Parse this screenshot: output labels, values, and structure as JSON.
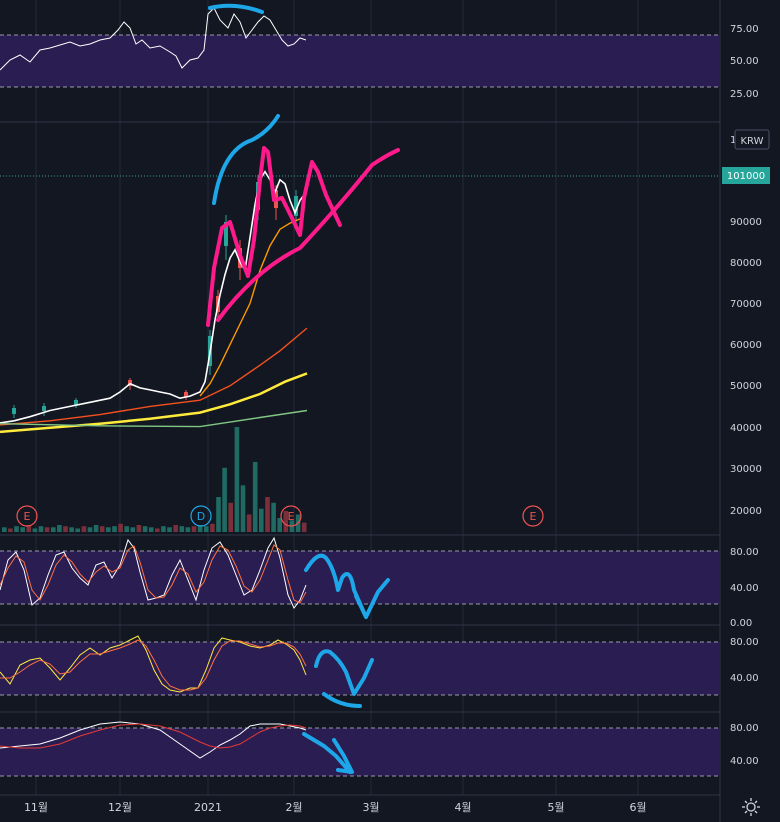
{
  "currency_badge": "KRW",
  "last_price_label": "101000",
  "colors": {
    "background": "#131722",
    "grid": "#232a3b",
    "text": "#d1d4dc",
    "band_fill": "#2a1d52",
    "band_line": "#9a9aa8",
    "candle_up": "#26a69a",
    "candle_down": "#ef5350",
    "ma_white": "#ffffff",
    "ma_orange": "#ff9800",
    "ma_red": "#f4511e",
    "ma_yellow": "#ffeb3b",
    "ma_green": "#81c784",
    "price_badge": "#26a69a",
    "drawing_blue": "#1ea7e8",
    "drawing_pink": "#ff1a8c",
    "stoch_k": "#ffffff",
    "stoch_d": "#ff7043",
    "osc2_a": "#ffeb3b",
    "osc2_b": "#ff7043",
    "osc3_a": "#ffffff",
    "osc3_b": "#e53935"
  },
  "x_axis_labels": [
    "11월",
    "12월",
    "2021",
    "2월",
    "3월",
    "4월",
    "5월",
    "6월"
  ],
  "top_indicator": {
    "tick_labels": [
      "75.00",
      "50.00",
      "25.00"
    ],
    "band_upper": 70,
    "band_lower": 30
  },
  "price_axis": {
    "tick_labels": [
      "1",
      "90000",
      "80000",
      "70000",
      "60000",
      "50000",
      "40000",
      "30000",
      "20000"
    ]
  },
  "stoch1": {
    "tick_labels": [
      "80.00",
      "40.00",
      "0.00"
    ],
    "band_upper": 80,
    "band_lower": 20
  },
  "stoch2": {
    "tick_labels": [
      "80.00",
      "40.00"
    ],
    "band_upper": 80,
    "band_lower": 20
  },
  "stoch3": {
    "tick_labels": [
      "80.00",
      "40.00"
    ],
    "band_upper": 80,
    "band_lower": 20
  },
  "event_markers": [
    {
      "label": "E",
      "kind": "earnings"
    },
    {
      "label": "D",
      "kind": "dividend"
    },
    {
      "label": "E",
      "kind": "earnings"
    },
    {
      "label": "E",
      "kind": "earnings"
    }
  ],
  "chart_data": {
    "type": "line",
    "last_price": 101000,
    "price_ylim": [
      17000,
      108000
    ],
    "price_series": [
      {
        "color": "#ffffff",
        "points": [
          [
            0,
            41000
          ],
          [
            14,
            41500
          ],
          [
            30,
            42500
          ],
          [
            50,
            44000
          ],
          [
            70,
            45000
          ],
          [
            90,
            46000
          ],
          [
            110,
            47000
          ],
          [
            120,
            48500
          ],
          [
            130,
            50500
          ],
          [
            140,
            49500
          ],
          [
            150,
            49000
          ],
          [
            160,
            48500
          ],
          [
            170,
            48000
          ],
          [
            180,
            47000
          ],
          [
            190,
            47500
          ],
          [
            200,
            48500
          ],
          [
            205,
            51000
          ],
          [
            210,
            58000
          ],
          [
            215,
            66000
          ],
          [
            220,
            72000
          ],
          [
            225,
            77000
          ],
          [
            230,
            81000
          ],
          [
            235,
            83000
          ],
          [
            240,
            80000
          ],
          [
            245,
            78000
          ],
          [
            250,
            86000
          ],
          [
            255,
            94000
          ],
          [
            260,
            100000
          ],
          [
            265,
            102000
          ],
          [
            270,
            100000
          ],
          [
            275,
            97000
          ],
          [
            280,
            100000
          ],
          [
            285,
            99000
          ],
          [
            290,
            95000
          ],
          [
            295,
            92000
          ],
          [
            300,
            95000
          ],
          [
            306,
            97000
          ]
        ]
      },
      {
        "color": "#ff9800",
        "points": [
          [
            200,
            47500
          ],
          [
            210,
            50500
          ],
          [
            220,
            55000
          ],
          [
            230,
            60000
          ],
          [
            240,
            65000
          ],
          [
            250,
            70000
          ],
          [
            260,
            78000
          ],
          [
            270,
            84000
          ],
          [
            280,
            88000
          ],
          [
            290,
            89500
          ],
          [
            300,
            90500
          ]
        ]
      },
      {
        "color": "#f4511e",
        "points": [
          [
            0,
            40500
          ],
          [
            50,
            41500
          ],
          [
            100,
            43000
          ],
          [
            150,
            45000
          ],
          [
            200,
            46500
          ],
          [
            230,
            50000
          ],
          [
            260,
            55000
          ],
          [
            280,
            58500
          ],
          [
            307,
            64000
          ]
        ]
      },
      {
        "color": "#ffeb3b",
        "points": [
          [
            0,
            38800
          ],
          [
            50,
            39800
          ],
          [
            100,
            40800
          ],
          [
            150,
            42000
          ],
          [
            200,
            43500
          ],
          [
            230,
            45500
          ],
          [
            260,
            48000
          ],
          [
            285,
            51000
          ],
          [
            307,
            53000
          ]
        ]
      },
      {
        "color": "#81c784",
        "points": [
          [
            0,
            40800
          ],
          [
            100,
            40300
          ],
          [
            200,
            40100
          ],
          [
            230,
            41200
          ],
          [
            260,
            42300
          ],
          [
            307,
            44000
          ]
        ]
      }
    ],
    "volume_bars": [
      4,
      3,
      5,
      4,
      6,
      3,
      5,
      4,
      4,
      6,
      5,
      4,
      3,
      5,
      4,
      6,
      5,
      4,
      5,
      7,
      5,
      4,
      6,
      5,
      4,
      3,
      5,
      4,
      6,
      5,
      4,
      5,
      6,
      5,
      7,
      30,
      55,
      25,
      90,
      40,
      15,
      60,
      20,
      30,
      25,
      12,
      18,
      10,
      15,
      8
    ]
  }
}
